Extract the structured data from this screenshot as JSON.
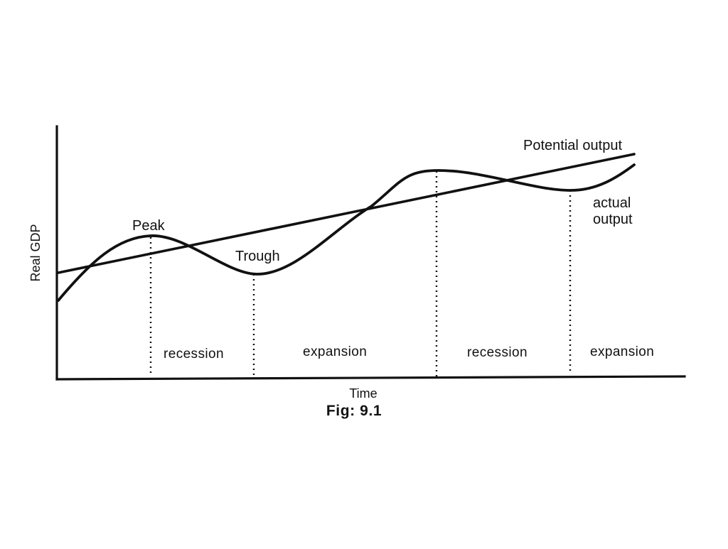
{
  "diagram": {
    "caption": "Fig: 9.1",
    "axes": {
      "x_label": "Time",
      "y_label": "Real GDP"
    },
    "series": {
      "potential": "Potential output",
      "actual_line1": "actual",
      "actual_line2": "output"
    },
    "points": {
      "peak": "Peak",
      "trough": "Trough"
    },
    "phases": [
      "recession",
      "expansion",
      "recession",
      "expansion"
    ],
    "style": {
      "ink": "#111111",
      "background": "#ffffff"
    }
  }
}
